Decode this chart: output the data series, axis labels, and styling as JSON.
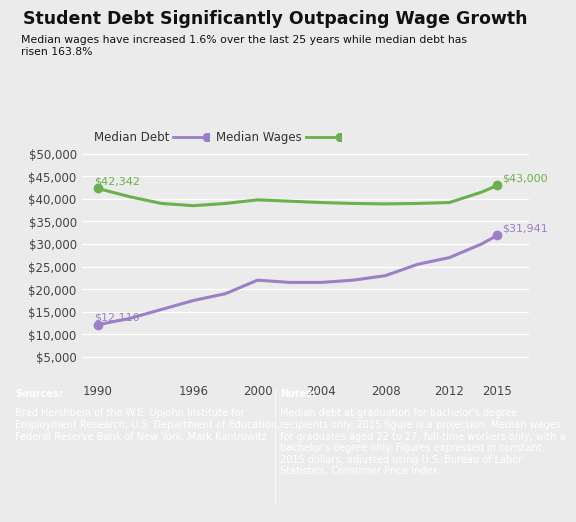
{
  "title": "Student Debt Significantly Outpacing Wage Growth",
  "subtitle": "Median wages have increased 1.6% over the last 25 years while median debt has\nrisen 163.8%",
  "bg_color": "#ebebeb",
  "plot_bg_color": "#ebebeb",
  "footer_bg_color": "#9e9e9e",
  "debt_years": [
    1990,
    1992,
    1994,
    1996,
    1998,
    2000,
    2002,
    2004,
    2006,
    2008,
    2010,
    2012,
    2014,
    2015
  ],
  "debt_values": [
    12110,
    13500,
    15500,
    17500,
    19000,
    22000,
    21500,
    21500,
    22000,
    23000,
    25500,
    27000,
    30000,
    31941
  ],
  "wages_years": [
    1990,
    1992,
    1994,
    1996,
    1998,
    2000,
    2002,
    2004,
    2006,
    2008,
    2010,
    2012,
    2014,
    2015
  ],
  "wages_values": [
    42342,
    40500,
    39000,
    38500,
    39000,
    39800,
    39500,
    39200,
    39000,
    38900,
    39000,
    39200,
    41500,
    43000
  ],
  "debt_color": "#9b7fc7",
  "wages_color": "#6ab04c",
  "debt_label": "Median Debt",
  "wages_label": "Median Wages",
  "debt_start_label": "$12,110",
  "debt_end_label": "$31,941",
  "wages_start_label": "$42,342",
  "wages_end_label": "$43,000",
  "yticks": [
    5000,
    10000,
    15000,
    20000,
    25000,
    30000,
    35000,
    40000,
    45000,
    50000
  ],
  "xticks": [
    1990,
    1996,
    2000,
    2004,
    2008,
    2012,
    2015
  ],
  "ylim": [
    0,
    52000
  ],
  "xlim": [
    1989,
    2017
  ],
  "sources_bold": "Sources:",
  "sources_text": " Brad Hershbein of the W.E. Upjohn Institute for\nEmployment Research, U.S. Department of Education,\nFederal Reserve Bank of New York, Mark Kantrowitz",
  "notes_bold": "Notes:",
  "notes_text": " Median debt at graduation for bachelor's degree\nrecipients only. 2015 figure is a projection. Median wages\nfor graduates aged 22 to 27, full-time workers only, with a\nbachelor's degree only. Figures expressed in constant\n2015 dollars, adjusted using U.S. Bureau of Labor\nStatistics, Consumer Price Index."
}
